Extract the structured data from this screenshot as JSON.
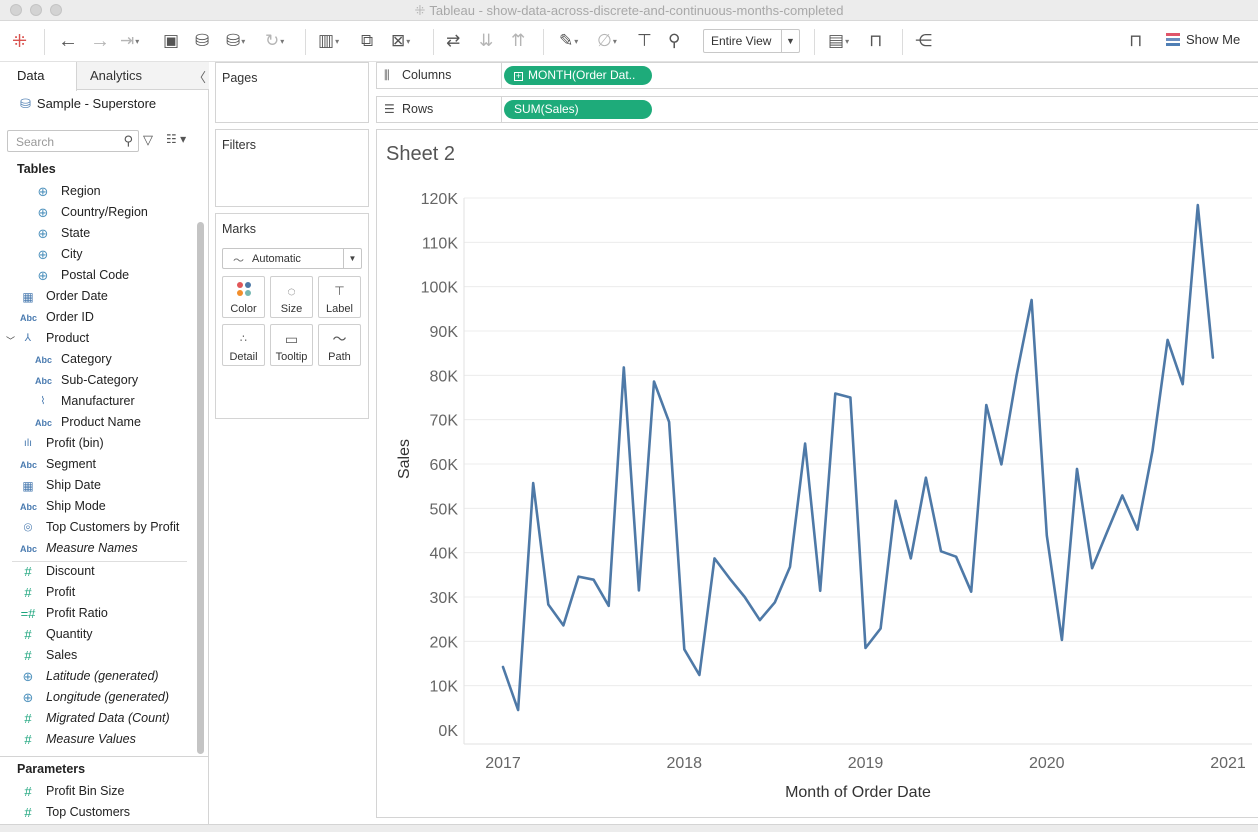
{
  "window": {
    "title": "Tableau - show-data-across-discrete-and-continuous-months-completed",
    "logo_icon": "tableau-logo-icon"
  },
  "toolbar": {
    "fit_select": "Entire View",
    "show_me": "Show Me",
    "icons": [
      "tableau-logo-icon",
      "undo-icon",
      "redo-icon",
      "replay-icon",
      "save-icon",
      "new-datasource-icon",
      "pause-updates-icon",
      "refresh-icon",
      "new-worksheet-icon",
      "duplicate-icon",
      "clear-sheet-icon",
      "swap-axes-icon",
      "sort-ascending-icon",
      "sort-descending-icon",
      "highlight-icon",
      "group-icon",
      "label-icon",
      "pin-icon",
      "cards-icon",
      "presentation-icon",
      "share-icon",
      "tooltip-format-icon"
    ]
  },
  "sidebar": {
    "tabs": {
      "data": "Data",
      "analytics": "Analytics"
    },
    "datasource": "Sample - Superstore",
    "search_placeholder": "Search",
    "tables_header": "Tables",
    "dimensions": [
      {
        "name": "Region",
        "icon": "globe-icon",
        "indent": true
      },
      {
        "name": "Country/Region",
        "icon": "globe-icon",
        "indent": true
      },
      {
        "name": "State",
        "icon": "globe-icon",
        "indent": true
      },
      {
        "name": "City",
        "icon": "globe-icon",
        "indent": true
      },
      {
        "name": "Postal Code",
        "icon": "globe-icon",
        "indent": true
      },
      {
        "name": "Order Date",
        "icon": "calendar-icon",
        "indent": false
      },
      {
        "name": "Order ID",
        "icon": "abc-icon",
        "indent": false
      },
      {
        "name": "Product",
        "icon": "hierarchy-icon",
        "indent": false
      },
      {
        "name": "Category",
        "icon": "abc-icon",
        "indent": true
      },
      {
        "name": "Sub-Category",
        "icon": "abc-icon",
        "indent": true
      },
      {
        "name": "Manufacturer",
        "icon": "paperclip-icon",
        "indent": true
      },
      {
        "name": "Product Name",
        "icon": "abc-icon",
        "indent": true
      },
      {
        "name": "Profit (bin)",
        "icon": "histogram-icon",
        "indent": false
      },
      {
        "name": "Segment",
        "icon": "abc-icon",
        "indent": false
      },
      {
        "name": "Ship Date",
        "icon": "calendar-icon",
        "indent": false
      },
      {
        "name": "Ship Mode",
        "icon": "abc-icon",
        "indent": false
      },
      {
        "name": "Top Customers by Profit",
        "icon": "set-icon",
        "indent": false
      },
      {
        "name": "Measure Names",
        "icon": "abc-icon",
        "indent": false,
        "italic": true
      }
    ],
    "measures": [
      {
        "name": "Discount",
        "icon": "measure-icon"
      },
      {
        "name": "Profit",
        "icon": "measure-icon"
      },
      {
        "name": "Profit Ratio",
        "icon": "calc-measure-icon"
      },
      {
        "name": "Quantity",
        "icon": "measure-icon"
      },
      {
        "name": "Sales",
        "icon": "measure-icon"
      },
      {
        "name": "Latitude (generated)",
        "icon": "globe-icon",
        "italic": true
      },
      {
        "name": "Longitude (generated)",
        "icon": "globe-icon",
        "italic": true
      },
      {
        "name": "Migrated Data (Count)",
        "icon": "measure-icon",
        "italic": true
      },
      {
        "name": "Measure Values",
        "icon": "measure-icon",
        "italic": true
      }
    ],
    "parameters_header": "Parameters",
    "parameters": [
      {
        "name": "Profit Bin Size",
        "icon": "measure-icon"
      },
      {
        "name": "Top Customers",
        "icon": "measure-icon"
      }
    ]
  },
  "cards": {
    "pages": "Pages",
    "filters": "Filters",
    "marks": {
      "header": "Marks",
      "type": "Automatic",
      "buttons": [
        "Color",
        "Size",
        "Label",
        "Detail",
        "Tooltip",
        "Path"
      ]
    }
  },
  "shelves": {
    "columns_label": "Columns",
    "columns_pill": "MONTH(Order Dat..",
    "rows_label": "Rows",
    "rows_pill": "SUM(Sales)"
  },
  "sheet": {
    "title": "Sheet 2"
  },
  "chart_data": {
    "type": "line",
    "xlabel": "Month of Order Date",
    "ylabel": "Sales",
    "ylim": [
      0,
      120000
    ],
    "y_ticks": [
      "0K",
      "10K",
      "20K",
      "30K",
      "40K",
      "50K",
      "60K",
      "70K",
      "80K",
      "90K",
      "100K",
      "110K",
      "120K"
    ],
    "x_ticks": [
      "2017",
      "2018",
      "2019",
      "2020",
      "2021"
    ],
    "grid": "horizontal",
    "line_color": "#4e79a7",
    "series": [
      {
        "x": [
          "2017-01",
          "2017-02",
          "2017-03",
          "2017-04",
          "2017-05",
          "2017-06",
          "2017-07",
          "2017-08",
          "2017-09",
          "2017-10",
          "2017-11",
          "2017-12",
          "2018-01",
          "2018-02",
          "2018-03",
          "2018-04",
          "2018-05",
          "2018-06",
          "2018-07",
          "2018-08",
          "2018-09",
          "2018-10",
          "2018-11",
          "2018-12",
          "2019-01",
          "2019-02",
          "2019-03",
          "2019-04",
          "2019-05",
          "2019-06",
          "2019-07",
          "2019-08",
          "2019-09",
          "2019-10",
          "2019-11",
          "2019-12",
          "2020-01",
          "2020-02",
          "2020-03",
          "2020-04",
          "2020-05",
          "2020-06",
          "2020-07",
          "2020-08",
          "2020-09",
          "2020-10",
          "2020-11",
          "2020-12"
        ],
        "values": [
          14200,
          4500,
          55700,
          28300,
          23600,
          34600,
          33900,
          28000,
          81800,
          31500,
          78600,
          69500,
          18200,
          12400,
          38700,
          34200,
          30000,
          24800,
          28800,
          36800,
          64600,
          31400,
          75900,
          75000,
          18500,
          22900,
          51700,
          38700,
          56900,
          40300,
          39100,
          31200,
          73300,
          59900,
          79900,
          97000,
          43900,
          20300,
          58900,
          36500,
          44700,
          52900,
          45200,
          63000,
          88000,
          78000,
          118400,
          84000
        ]
      }
    ]
  }
}
